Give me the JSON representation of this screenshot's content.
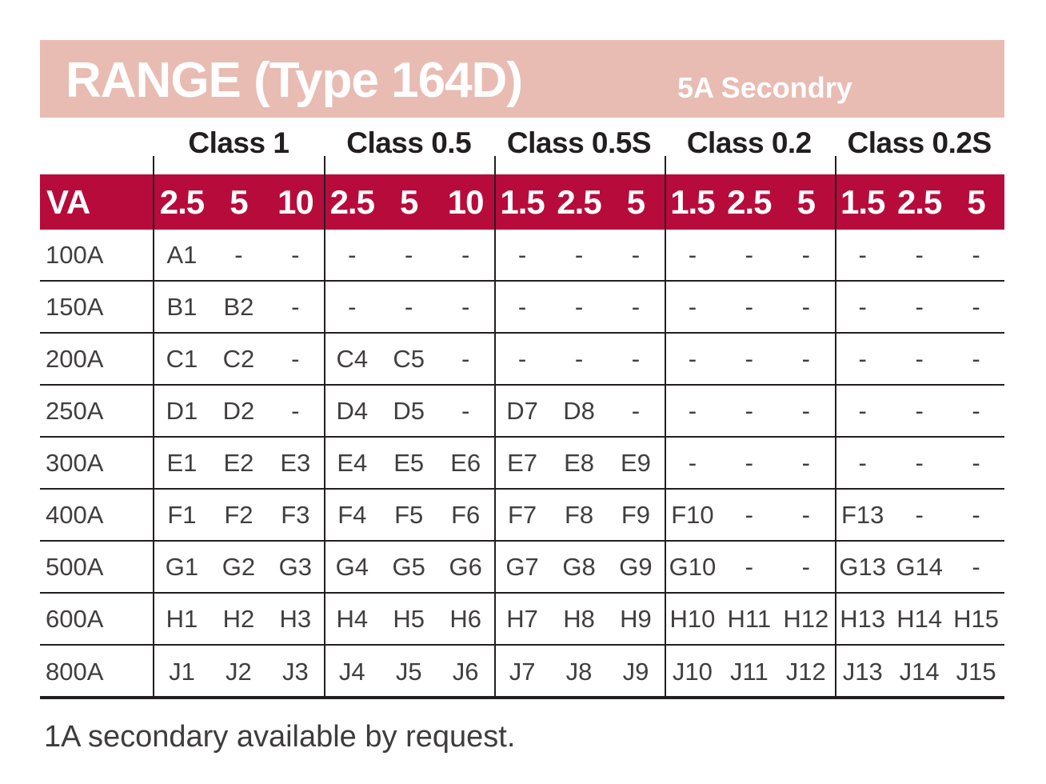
{
  "page": {
    "title": "RANGE (Type 164D)",
    "subtitle": "5A Secondry",
    "footnote": "1A secondary available by request."
  },
  "colors": {
    "title_band_pink": "#e8bcb3",
    "va_band_crimson": "#b70b3c",
    "line_black": "#231f20",
    "cell_text_gray": "#413e3e",
    "header_text_white": "#ffffff"
  },
  "table": {
    "va_label": "VA",
    "class_headers": [
      "Class 1",
      "Class 0.5",
      "Class 0.5S",
      "Class 0.2",
      "Class 0.2S"
    ],
    "va_values": [
      "2.5",
      "5",
      "10",
      "2.5",
      "5",
      "10",
      "1.5",
      "2.5",
      "5",
      "1.5",
      "2.5",
      "5",
      "1.5",
      "2.5",
      "5"
    ],
    "rows": [
      {
        "amp": "100A",
        "cells": [
          "A1",
          "-",
          "-",
          "-",
          "-",
          "-",
          "-",
          "-",
          "-",
          "-",
          "-",
          "-",
          "-",
          "-",
          "-"
        ]
      },
      {
        "amp": "150A",
        "cells": [
          "B1",
          "B2",
          "-",
          "-",
          "-",
          "-",
          "-",
          "-",
          "-",
          "-",
          "-",
          "-",
          "-",
          "-",
          "-"
        ]
      },
      {
        "amp": "200A",
        "cells": [
          "C1",
          "C2",
          "-",
          "C4",
          "C5",
          "-",
          "-",
          "-",
          "-",
          "-",
          "-",
          "-",
          "-",
          "-",
          "-"
        ]
      },
      {
        "amp": "250A",
        "cells": [
          "D1",
          "D2",
          "-",
          "D4",
          "D5",
          "-",
          "D7",
          "D8",
          "-",
          "-",
          "-",
          "-",
          "-",
          "-",
          "-"
        ]
      },
      {
        "amp": "300A",
        "cells": [
          "E1",
          "E2",
          "E3",
          "E4",
          "E5",
          "E6",
          "E7",
          "E8",
          "E9",
          "-",
          "-",
          "-",
          "-",
          "-",
          "-"
        ]
      },
      {
        "amp": "400A",
        "cells": [
          "F1",
          "F2",
          "F3",
          "F4",
          "F5",
          "F6",
          "F7",
          "F8",
          "F9",
          "F10",
          "-",
          "-",
          "F13",
          "-",
          "-"
        ]
      },
      {
        "amp": "500A",
        "cells": [
          "G1",
          "G2",
          "G3",
          "G4",
          "G5",
          "G6",
          "G7",
          "G8",
          "G9",
          "G10",
          "-",
          "-",
          "G13",
          "G14",
          "-"
        ]
      },
      {
        "amp": "600A",
        "cells": [
          "H1",
          "H2",
          "H3",
          "H4",
          "H5",
          "H6",
          "H7",
          "H8",
          "H9",
          "H10",
          "H11",
          "H12",
          "H13",
          "H14",
          "H15"
        ]
      },
      {
        "amp": "800A",
        "cells": [
          "J1",
          "J2",
          "J3",
          "J4",
          "J5",
          "J6",
          "J7",
          "J8",
          "J9",
          "J10",
          "J11",
          "J12",
          "J13",
          "J14",
          "J15"
        ]
      }
    ]
  }
}
